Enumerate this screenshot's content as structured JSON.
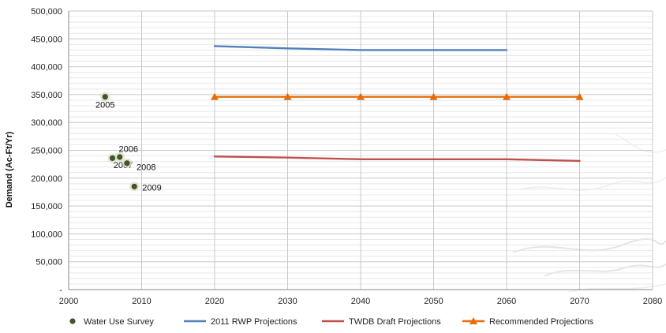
{
  "chart_data": {
    "type": "line",
    "title": "",
    "xlabel": "",
    "ylabel": "Demand (Ac-Ft/Yr)",
    "xlim": [
      2000,
      2080
    ],
    "ylim": [
      0,
      500000
    ],
    "x_ticks": [
      2000,
      2010,
      2020,
      2030,
      2040,
      2050,
      2060,
      2070,
      2080
    ],
    "x_tick_labels": [
      "2000",
      "2010",
      "2020",
      "2030",
      "2040",
      "2050",
      "2060",
      "2070",
      "2080"
    ],
    "y_ticks": [
      0,
      50000,
      100000,
      150000,
      200000,
      250000,
      300000,
      350000,
      400000,
      450000,
      500000
    ],
    "y_tick_labels": [
      "-",
      "50,000",
      "100,000",
      "150,000",
      "200,000",
      "250,000",
      "300,000",
      "350,000",
      "400,000",
      "450,000",
      "500,000"
    ],
    "grid": true,
    "legend_position": "bottom",
    "series": [
      {
        "name": "Water Use Survey",
        "kind": "scatter",
        "color": "#3f5a22",
        "points": [
          {
            "x": 2005,
            "y": 346000,
            "label": "2005"
          },
          {
            "x": 2006,
            "y": 236000,
            "label": "2006"
          },
          {
            "x": 2007,
            "y": 238000,
            "label": "2007"
          },
          {
            "x": 2008,
            "y": 227000,
            "label": "2008"
          },
          {
            "x": 2009,
            "y": 185000,
            "label": "2009"
          }
        ]
      },
      {
        "name": "2011 RWP Projections",
        "kind": "line",
        "color": "#4f81bd",
        "points": [
          {
            "x": 2020,
            "y": 437000
          },
          {
            "x": 2030,
            "y": 433000
          },
          {
            "x": 2040,
            "y": 430000
          },
          {
            "x": 2050,
            "y": 430000
          },
          {
            "x": 2060,
            "y": 430000
          }
        ]
      },
      {
        "name": "TWDB Draft Projections",
        "kind": "line",
        "color": "#c0504d",
        "points": [
          {
            "x": 2020,
            "y": 239000
          },
          {
            "x": 2030,
            "y": 237000
          },
          {
            "x": 2040,
            "y": 234000
          },
          {
            "x": 2050,
            "y": 234000
          },
          {
            "x": 2060,
            "y": 234000
          },
          {
            "x": 2070,
            "y": 231000
          }
        ]
      },
      {
        "name": "Recommended Projections",
        "kind": "line-triangle",
        "color": "#e46c0a",
        "points": [
          {
            "x": 2020,
            "y": 346000
          },
          {
            "x": 2030,
            "y": 346000
          },
          {
            "x": 2040,
            "y": 346000
          },
          {
            "x": 2050,
            "y": 346000
          },
          {
            "x": 2060,
            "y": 346000
          },
          {
            "x": 2070,
            "y": 346000
          }
        ]
      }
    ]
  }
}
